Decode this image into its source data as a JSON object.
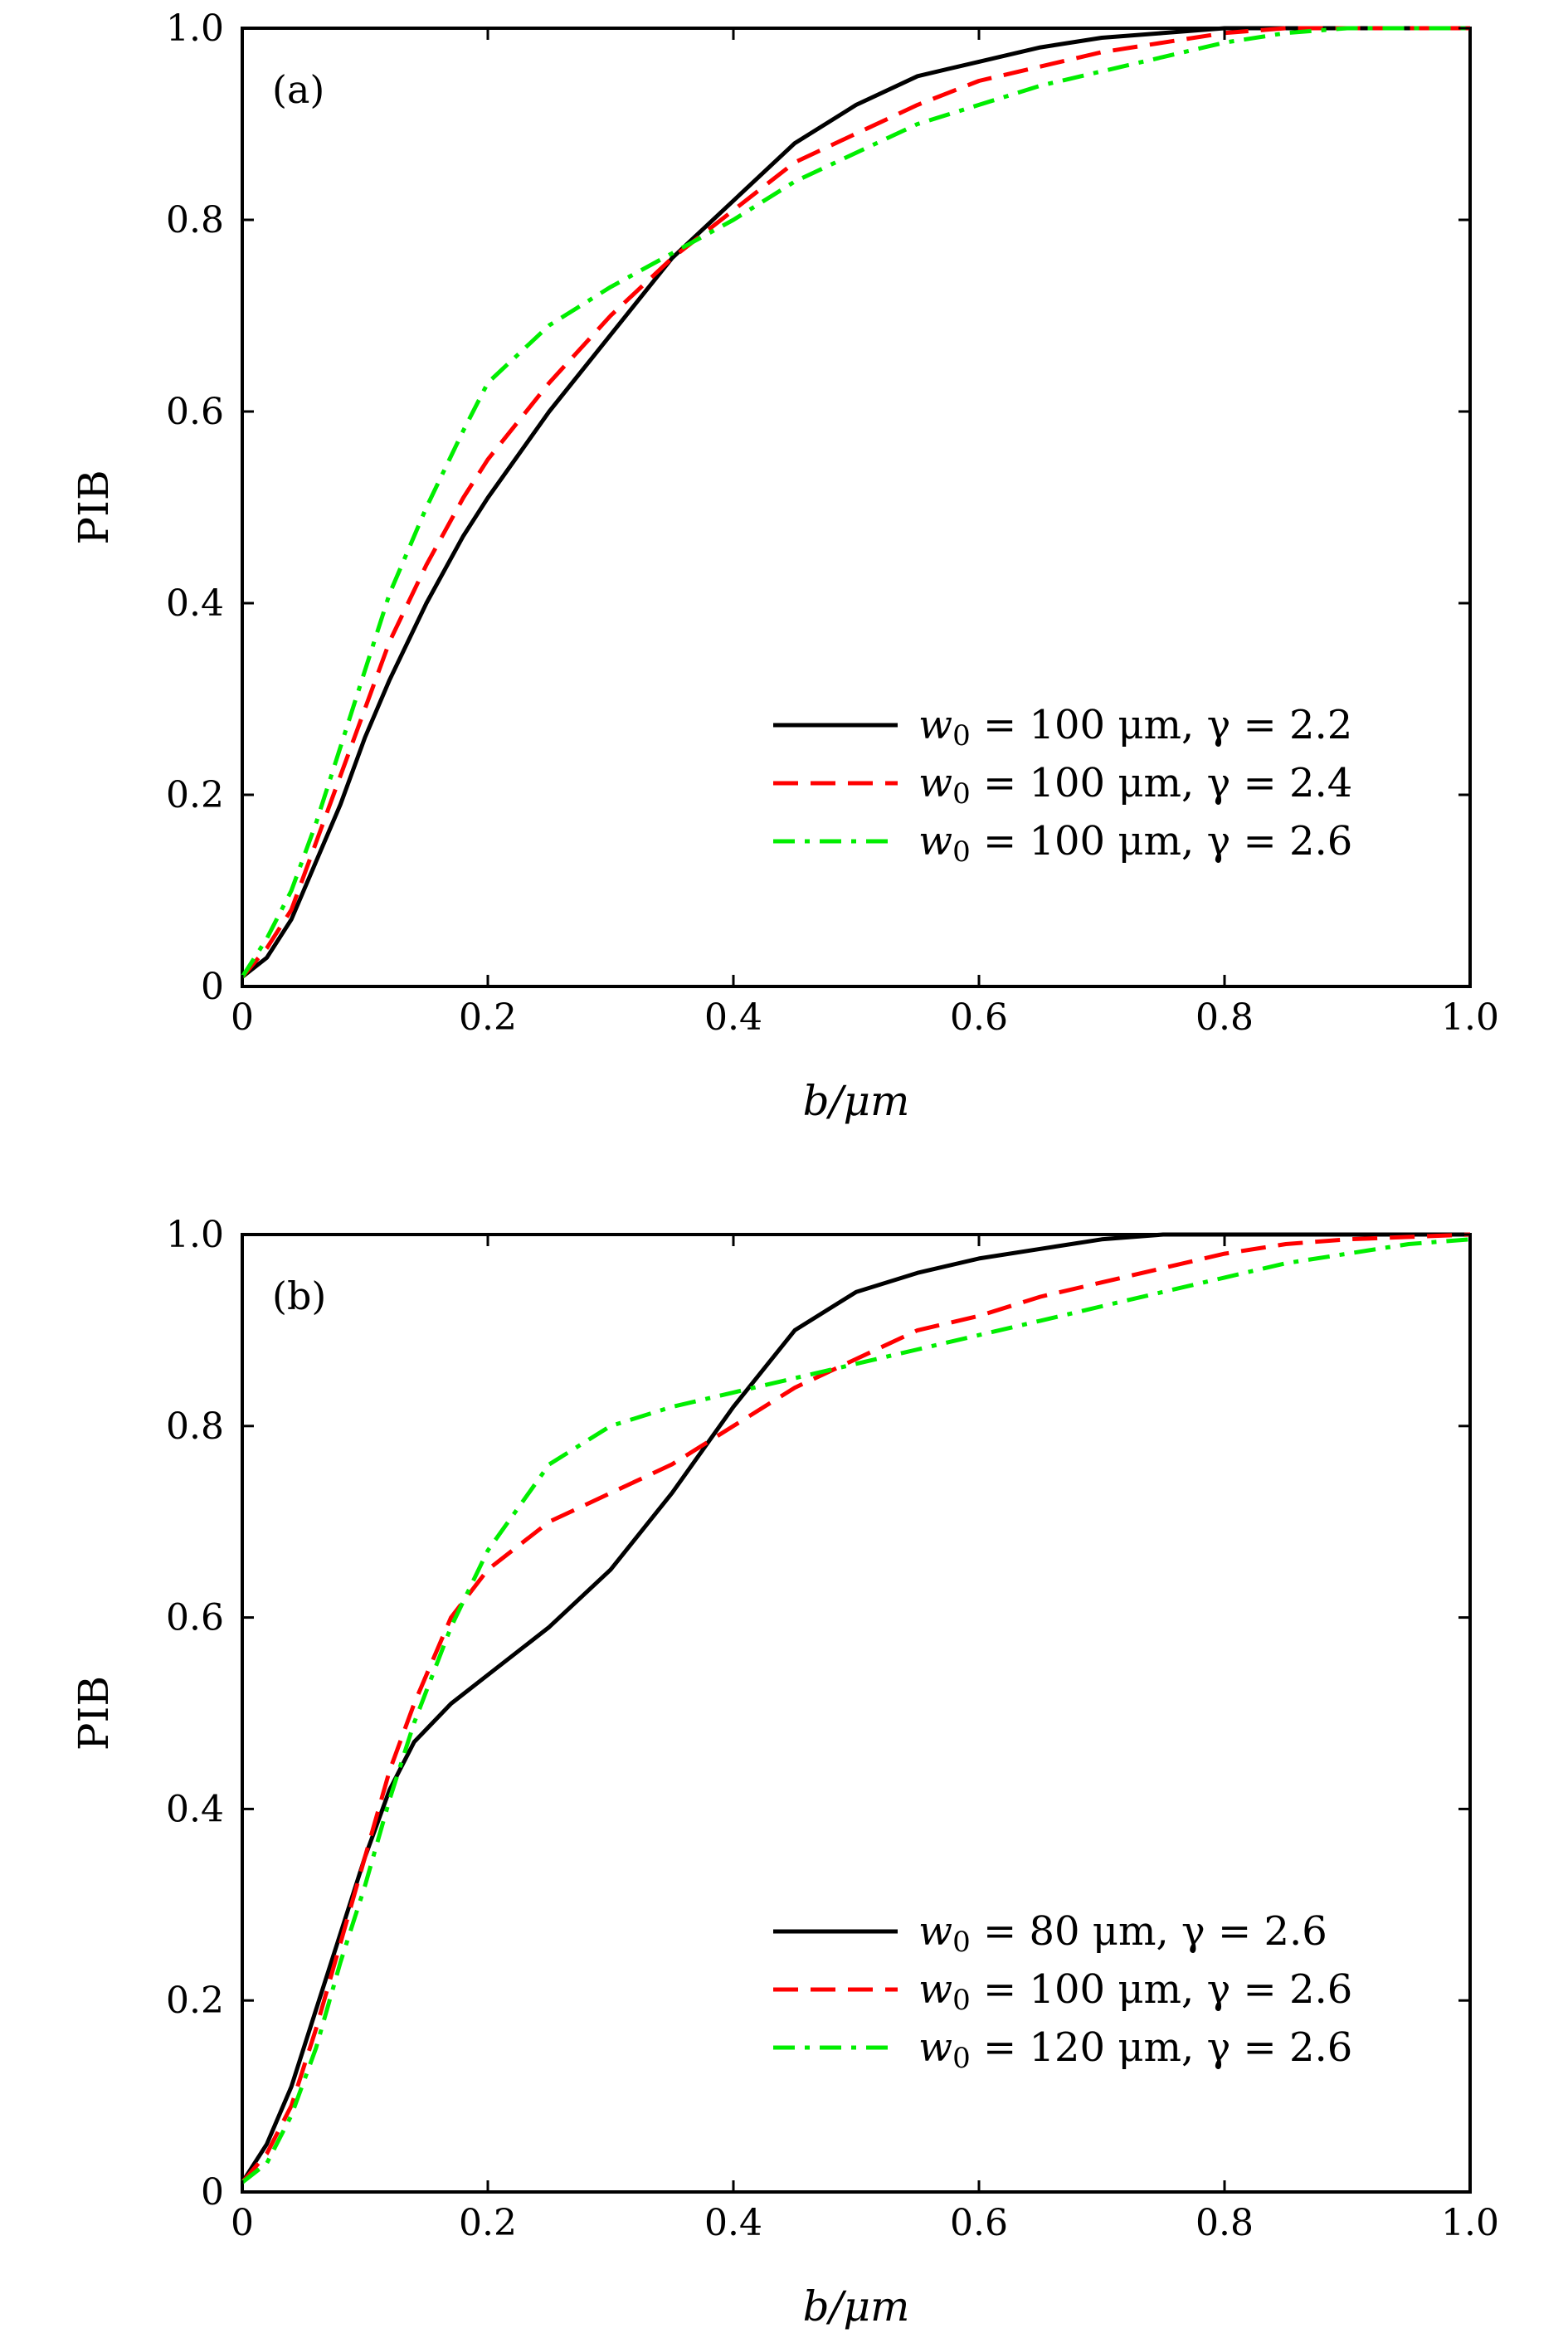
{
  "chart_data": [
    {
      "type": "line",
      "panel_label": "(a)",
      "xlabel": "b/μm",
      "ylabel": "PIB",
      "xlim": [
        0,
        1.0
      ],
      "ylim": [
        0,
        1.0
      ],
      "x_ticks": [
        "0",
        "0.2",
        "0.4",
        "0.6",
        "0.8",
        "1.0"
      ],
      "y_ticks": [
        "0",
        "0.2",
        "0.4",
        "0.6",
        "0.8",
        "1.0"
      ],
      "legend_position": "lower-right",
      "series": [
        {
          "name": "w0 = 100 μm, γ = 2.2",
          "legend_parts": {
            "w": "w",
            "sub": "0",
            "rest": " = 100 μm, γ = 2.2"
          },
          "color": "#000000",
          "dash": "solid",
          "x": [
            0,
            0.02,
            0.04,
            0.06,
            0.08,
            0.1,
            0.12,
            0.15,
            0.18,
            0.2,
            0.25,
            0.3,
            0.35,
            0.4,
            0.45,
            0.5,
            0.55,
            0.6,
            0.65,
            0.7,
            0.75,
            0.8,
            0.9,
            1.0
          ],
          "y": [
            0.01,
            0.03,
            0.07,
            0.13,
            0.19,
            0.26,
            0.32,
            0.4,
            0.47,
            0.51,
            0.6,
            0.68,
            0.76,
            0.82,
            0.88,
            0.92,
            0.95,
            0.965,
            0.98,
            0.99,
            0.995,
            1.0,
            1.0,
            1.0
          ]
        },
        {
          "name": "w0 = 100 μm, γ = 2.4",
          "legend_parts": {
            "w": "w",
            "sub": "0",
            "rest": " = 100 μm, γ = 2.4"
          },
          "color": "#ff0000",
          "dash": "dashed",
          "x": [
            0,
            0.02,
            0.04,
            0.06,
            0.08,
            0.1,
            0.12,
            0.15,
            0.18,
            0.2,
            0.25,
            0.3,
            0.35,
            0.4,
            0.45,
            0.5,
            0.55,
            0.6,
            0.65,
            0.7,
            0.75,
            0.8,
            0.85,
            0.9,
            1.0
          ],
          "y": [
            0.01,
            0.04,
            0.08,
            0.15,
            0.22,
            0.29,
            0.36,
            0.44,
            0.51,
            0.55,
            0.63,
            0.7,
            0.76,
            0.81,
            0.86,
            0.89,
            0.92,
            0.945,
            0.96,
            0.975,
            0.985,
            0.995,
            1.0,
            1.0,
            1.0
          ]
        },
        {
          "name": "w0 = 100 μm, γ = 2.6",
          "legend_parts": {
            "w": "w",
            "sub": "0",
            "rest": " = 100 μm, γ = 2.6"
          },
          "color": "#00ee00",
          "dash": "dashdot",
          "x": [
            0,
            0.02,
            0.04,
            0.06,
            0.08,
            0.1,
            0.12,
            0.15,
            0.18,
            0.2,
            0.25,
            0.3,
            0.35,
            0.4,
            0.45,
            0.5,
            0.55,
            0.6,
            0.65,
            0.7,
            0.75,
            0.8,
            0.85,
            0.9,
            1.0
          ],
          "y": [
            0.01,
            0.05,
            0.1,
            0.17,
            0.25,
            0.33,
            0.41,
            0.5,
            0.58,
            0.63,
            0.69,
            0.73,
            0.765,
            0.8,
            0.84,
            0.87,
            0.9,
            0.92,
            0.94,
            0.955,
            0.97,
            0.985,
            0.995,
            1.0,
            1.0
          ]
        }
      ]
    },
    {
      "type": "line",
      "panel_label": "(b)",
      "xlabel": "b/μm",
      "ylabel": "PIB",
      "xlim": [
        0,
        1.0
      ],
      "ylim": [
        0,
        1.0
      ],
      "x_ticks": [
        "0",
        "0.2",
        "0.4",
        "0.6",
        "0.8",
        "1.0"
      ],
      "y_ticks": [
        "0",
        "0.2",
        "0.4",
        "0.6",
        "0.8",
        "1.0"
      ],
      "legend_position": "lower-right",
      "series": [
        {
          "name": "w0 = 80 μm, γ = 2.6",
          "legend_parts": {
            "w": "w",
            "sub": "0",
            "rest": " = 80 μm, γ = 2.6"
          },
          "color": "#000000",
          "dash": "solid",
          "x": [
            0,
            0.02,
            0.04,
            0.06,
            0.08,
            0.1,
            0.12,
            0.14,
            0.17,
            0.2,
            0.25,
            0.3,
            0.35,
            0.4,
            0.45,
            0.5,
            0.55,
            0.6,
            0.65,
            0.7,
            0.75,
            0.8,
            0.9,
            1.0
          ],
          "y": [
            0.01,
            0.05,
            0.11,
            0.19,
            0.27,
            0.35,
            0.42,
            0.47,
            0.51,
            0.54,
            0.59,
            0.65,
            0.73,
            0.82,
            0.9,
            0.94,
            0.96,
            0.975,
            0.985,
            0.995,
            1.0,
            1.0,
            1.0,
            1.0
          ]
        },
        {
          "name": "w0 = 100 μm, γ = 2.6",
          "legend_parts": {
            "w": "w",
            "sub": "0",
            "rest": " = 100 μm, γ = 2.6"
          },
          "color": "#ff0000",
          "dash": "dashed",
          "x": [
            0,
            0.02,
            0.04,
            0.06,
            0.08,
            0.1,
            0.12,
            0.14,
            0.17,
            0.2,
            0.25,
            0.3,
            0.35,
            0.4,
            0.45,
            0.5,
            0.55,
            0.6,
            0.65,
            0.7,
            0.75,
            0.8,
            0.85,
            0.9,
            1.0
          ],
          "y": [
            0.01,
            0.04,
            0.09,
            0.17,
            0.26,
            0.35,
            0.44,
            0.51,
            0.6,
            0.65,
            0.7,
            0.73,
            0.76,
            0.8,
            0.84,
            0.87,
            0.9,
            0.915,
            0.935,
            0.95,
            0.965,
            0.98,
            0.99,
            0.995,
            1.0
          ]
        },
        {
          "name": "w0 = 120 μm, γ = 2.6",
          "legend_parts": {
            "w": "w",
            "sub": "0",
            "rest": " = 120 μm, γ = 2.6"
          },
          "color": "#00ee00",
          "dash": "dashdot",
          "x": [
            0,
            0.02,
            0.04,
            0.06,
            0.08,
            0.1,
            0.12,
            0.14,
            0.17,
            0.2,
            0.25,
            0.3,
            0.35,
            0.4,
            0.45,
            0.5,
            0.55,
            0.6,
            0.65,
            0.7,
            0.75,
            0.8,
            0.85,
            0.9,
            0.95,
            1.0
          ],
          "y": [
            0.01,
            0.03,
            0.08,
            0.15,
            0.24,
            0.32,
            0.41,
            0.49,
            0.59,
            0.67,
            0.76,
            0.8,
            0.82,
            0.835,
            0.85,
            0.865,
            0.88,
            0.895,
            0.91,
            0.925,
            0.94,
            0.955,
            0.97,
            0.98,
            0.99,
            0.995
          ]
        }
      ]
    }
  ]
}
